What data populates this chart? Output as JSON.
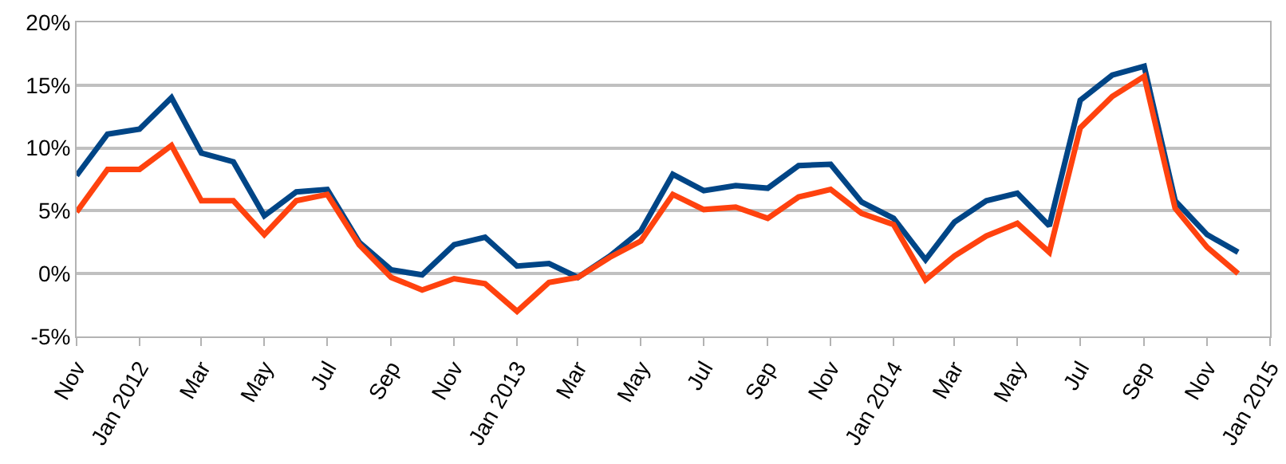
{
  "chart_data": {
    "type": "line",
    "x": [
      "2011-11",
      "2011-12",
      "2012-01",
      "2012-02",
      "2012-03",
      "2012-04",
      "2012-05",
      "2012-06",
      "2012-07",
      "2012-08",
      "2012-09",
      "2012-10",
      "2012-11",
      "2012-12",
      "2013-01",
      "2013-02",
      "2013-03",
      "2013-04",
      "2013-05",
      "2013-06",
      "2013-07",
      "2013-08",
      "2013-09",
      "2013-10",
      "2013-11",
      "2013-12",
      "2014-01",
      "2014-02",
      "2014-03",
      "2014-04",
      "2014-05",
      "2014-06",
      "2014-07",
      "2014-08",
      "2014-09",
      "2014-10",
      "2014-11",
      "2014-12"
    ],
    "series": [
      {
        "color": "#004586",
        "values": [
          7.8,
          11.1,
          11.5,
          14.0,
          9.6,
          8.9,
          4.6,
          6.5,
          6.7,
          2.5,
          0.3,
          -0.1,
          2.3,
          2.9,
          0.6,
          0.8,
          -0.3,
          1.4,
          3.4,
          7.9,
          6.6,
          7.0,
          6.8,
          8.6,
          8.7,
          5.7,
          4.4,
          1.1,
          4.1,
          5.8,
          6.4,
          3.8,
          13.8,
          15.8,
          16.5,
          5.8,
          3.1,
          1.7
        ]
      },
      {
        "color": "#ff420e",
        "values": [
          4.9,
          8.3,
          8.3,
          10.2,
          5.8,
          5.8,
          3.1,
          5.8,
          6.3,
          2.3,
          -0.3,
          -1.3,
          -0.4,
          -0.8,
          -3.0,
          -0.7,
          -0.3,
          1.3,
          2.6,
          6.3,
          5.1,
          5.3,
          4.4,
          6.1,
          6.7,
          4.8,
          3.9,
          -0.5,
          1.4,
          3.0,
          4.0,
          1.7,
          11.6,
          14.1,
          15.7,
          5.2,
          2.1,
          0.0
        ]
      }
    ],
    "xlim": [
      "2011-11",
      "2015-01"
    ],
    "xticks": [
      {
        "value": "2011-11",
        "label": "Nov"
      },
      {
        "value": "2012-01",
        "label": "Jan 2012"
      },
      {
        "value": "2012-03",
        "label": "Mar"
      },
      {
        "value": "2012-05",
        "label": "May"
      },
      {
        "value": "2012-07",
        "label": "Jul"
      },
      {
        "value": "2012-09",
        "label": "Sep"
      },
      {
        "value": "2012-11",
        "label": "Nov"
      },
      {
        "value": "2013-01",
        "label": "Jan 2013"
      },
      {
        "value": "2013-03",
        "label": "Mar"
      },
      {
        "value": "2013-05",
        "label": "May"
      },
      {
        "value": "2013-07",
        "label": "Jul"
      },
      {
        "value": "2013-09",
        "label": "Sep"
      },
      {
        "value": "2013-11",
        "label": "Nov"
      },
      {
        "value": "2014-01",
        "label": "Jan 2014"
      },
      {
        "value": "2014-03",
        "label": "Mar"
      },
      {
        "value": "2014-05",
        "label": "May"
      },
      {
        "value": "2014-07",
        "label": "Jul"
      },
      {
        "value": "2014-09",
        "label": "Sep"
      },
      {
        "value": "2014-11",
        "label": "Nov"
      },
      {
        "value": "2015-01",
        "label": "Jan 2015"
      }
    ],
    "ylim": [
      -5,
      20
    ],
    "yticks": [
      {
        "value": -5,
        "label": "-5%"
      },
      {
        "value": 0,
        "label": "0%"
      },
      {
        "value": 5,
        "label": "5%"
      },
      {
        "value": 10,
        "label": "10%"
      },
      {
        "value": 15,
        "label": "15%"
      },
      {
        "value": 20,
        "label": "20%"
      }
    ],
    "grid": "y",
    "marker": "none",
    "line_style": "solid"
  }
}
